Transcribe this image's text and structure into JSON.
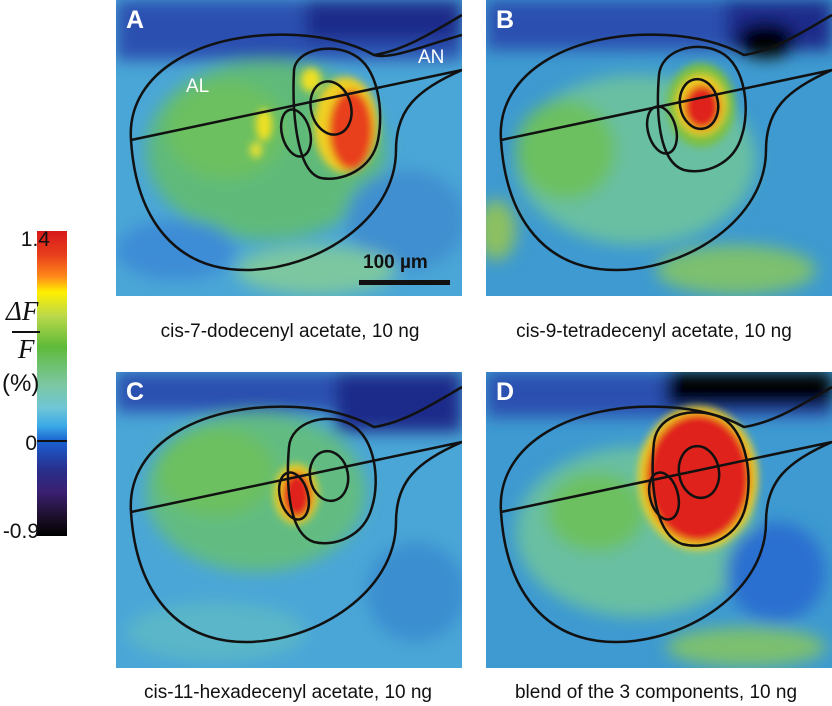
{
  "panels": [
    {
      "letter": "A",
      "caption": "cis-7-dodecenyl acetate, 10 ng"
    },
    {
      "letter": "B",
      "caption": "cis-9-tetradecenyl acetate, 10 ng"
    },
    {
      "letter": "C",
      "caption": "cis-11-hexadecenyl acetate, 10 ng"
    },
    {
      "letter": "D",
      "caption": "blend of the 3 components, 10 ng"
    }
  ],
  "labels": {
    "al": "AL",
    "an": "AN"
  },
  "scalebar": {
    "label": "100 µm"
  },
  "colorbar": {
    "max": "1.4",
    "zero": "0",
    "min": "-0.9",
    "numerator": "ΔF",
    "denominator": "F",
    "unit": "(%)"
  },
  "colors": {
    "high": "#d7191c",
    "mid": "#5fba3a",
    "low": "#1a5fd0",
    "min": "#000000"
  }
}
